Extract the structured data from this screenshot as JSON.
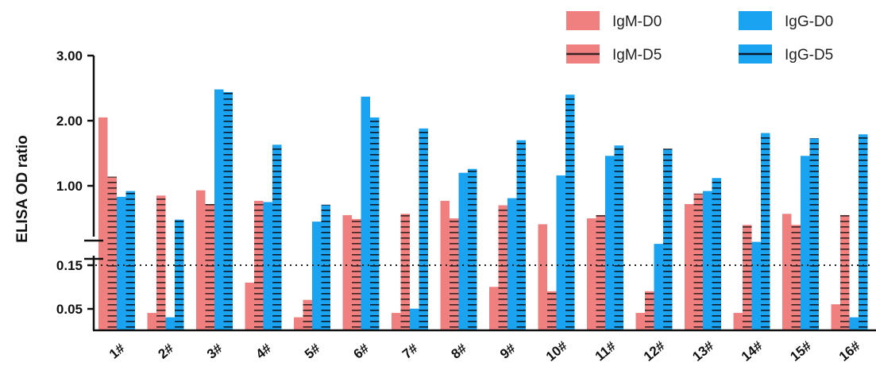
{
  "chart_data": {
    "type": "bar",
    "ylabel": "ELISA OD ratio",
    "y_ticks": [
      "3.00",
      "2.00",
      "1.00",
      "0.15",
      "0.05"
    ],
    "axis_break": true,
    "threshold": 0.15,
    "categories": [
      "1#",
      "2#",
      "3#",
      "4#",
      "5#",
      "6#",
      "7#",
      "8#",
      "9#",
      "10#",
      "11#",
      "12#",
      "13#",
      "14#",
      "15#",
      "16#"
    ],
    "series": [
      {
        "name": "IgM-D0",
        "color": "#f08080",
        "pattern": "solid",
        "values": [
          2.05,
          0.04,
          0.93,
          0.11,
          0.03,
          0.55,
          0.04,
          0.77,
          0.1,
          0.41,
          0.5,
          0.04,
          0.72,
          0.04,
          0.57,
          0.06
        ]
      },
      {
        "name": "IgM-D5",
        "color": "#f08080",
        "pattern": "striped",
        "values": [
          1.14,
          0.85,
          0.72,
          0.77,
          0.07,
          0.49,
          0.57,
          0.5,
          0.7,
          0.09,
          0.55,
          0.09,
          0.88,
          0.4,
          0.4,
          0.55
        ]
      },
      {
        "name": "IgG-D0",
        "color": "#1aa3f0",
        "pattern": "solid",
        "values": [
          0.83,
          0.03,
          2.48,
          0.75,
          0.45,
          2.37,
          0.05,
          1.2,
          0.81,
          1.16,
          1.46,
          0.36,
          0.92,
          0.38,
          1.46,
          0.03
        ]
      },
      {
        "name": "IgG-D5",
        "color": "#1aa3f0",
        "pattern": "striped",
        "values": [
          0.92,
          0.48,
          2.44,
          1.63,
          0.71,
          2.05,
          1.88,
          1.26,
          1.7,
          2.4,
          1.62,
          1.57,
          1.12,
          1.81,
          1.73,
          1.79
        ]
      }
    ],
    "legend_position": "top-right"
  }
}
